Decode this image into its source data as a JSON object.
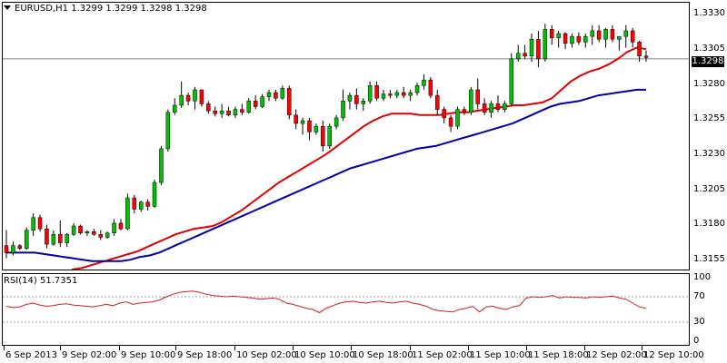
{
  "chart": {
    "symbol": "EURUSD,H1",
    "ohlc": "1.3299 1.3299 1.3298 1.3298",
    "current_price": "1.3298",
    "price_axis": [
      "1.3330",
      "1.3305",
      "1.3280",
      "1.3255",
      "1.3230",
      "1.3205",
      "1.3180",
      "1.3155"
    ],
    "time_axis": [
      "6 Sep 2013",
      "9 Sep 02:00",
      "9 Sep 10:00",
      "9 Sep 18:00",
      "10 Sep 02:00",
      "10 Sep 10:00",
      "10 Sep 18:00",
      "11 Sep 02:00",
      "11 Sep 10:00",
      "11 Sep 18:00",
      "12 Sep 02:00",
      "12 Sep 10:00"
    ]
  },
  "rsi": {
    "label": "RSI(14)",
    "value": "51.7351",
    "axis": [
      "100",
      "70",
      "30",
      "0"
    ]
  },
  "colors": {
    "bull": "#00c000",
    "bear": "#ff0000",
    "ma_fast": "#e00000",
    "ma_slow": "#0000a0",
    "rsi_line": "#d02020",
    "level_line": "#a0a0a0"
  },
  "chart_data": [
    {
      "type": "candlestick",
      "title": "EURUSD,H1",
      "ylim": [
        1.3148,
        1.3338
      ],
      "candles": [
        [
          1.3165,
          1.3176,
          1.3156,
          1.316
        ],
        [
          1.316,
          1.3168,
          1.3158,
          1.3165
        ],
        [
          1.3165,
          1.3166,
          1.3162,
          1.3163
        ],
        [
          1.3163,
          1.3178,
          1.3162,
          1.3176
        ],
        [
          1.3176,
          1.3188,
          1.3172,
          1.3185
        ],
        [
          1.3185,
          1.3187,
          1.3175,
          1.3177
        ],
        [
          1.3177,
          1.318,
          1.3163,
          1.3166
        ],
        [
          1.3166,
          1.3176,
          1.3165,
          1.3173
        ],
        [
          1.3173,
          1.3183,
          1.3164,
          1.3167
        ],
        [
          1.3167,
          1.3174,
          1.3164,
          1.3173
        ],
        [
          1.3173,
          1.3181,
          1.3172,
          1.3179
        ],
        [
          1.3179,
          1.318,
          1.3173,
          1.3174
        ],
        [
          1.3174,
          1.3176,
          1.3172,
          1.3175
        ],
        [
          1.3175,
          1.3177,
          1.3172,
          1.3173
        ],
        [
          1.3173,
          1.3176,
          1.3169,
          1.3171
        ],
        [
          1.3171,
          1.3175,
          1.317,
          1.3174
        ],
        [
          1.3174,
          1.3184,
          1.3172,
          1.3181
        ],
        [
          1.3181,
          1.3184,
          1.3176,
          1.3177
        ],
        [
          1.3177,
          1.3202,
          1.3176,
          1.3199
        ],
        [
          1.3199,
          1.3201,
          1.3188,
          1.3191
        ],
        [
          1.3191,
          1.3197,
          1.3189,
          1.3196
        ],
        [
          1.3196,
          1.3198,
          1.319,
          1.3193
        ],
        [
          1.3193,
          1.3212,
          1.3192,
          1.321
        ],
        [
          1.321,
          1.3236,
          1.3208,
          1.3234
        ],
        [
          1.3234,
          1.3262,
          1.3232,
          1.326
        ],
        [
          1.326,
          1.327,
          1.3258,
          1.3265
        ],
        [
          1.3265,
          1.3282,
          1.3263,
          1.3272
        ],
        [
          1.3272,
          1.3274,
          1.3265,
          1.3268
        ],
        [
          1.3268,
          1.3278,
          1.3262,
          1.3276
        ],
        [
          1.3276,
          1.3276,
          1.3264,
          1.3266
        ],
        [
          1.3266,
          1.3268,
          1.3259,
          1.3261
        ],
        [
          1.3261,
          1.3264,
          1.3257,
          1.3259
        ],
        [
          1.3259,
          1.3266,
          1.3256,
          1.3261
        ],
        [
          1.3261,
          1.3264,
          1.3257,
          1.3258
        ],
        [
          1.3258,
          1.3264,
          1.3256,
          1.3262
        ],
        [
          1.3262,
          1.3266,
          1.3258,
          1.326
        ],
        [
          1.326,
          1.327,
          1.3259,
          1.3268
        ],
        [
          1.3268,
          1.3272,
          1.3262,
          1.3264
        ],
        [
          1.3264,
          1.3273,
          1.3263,
          1.3271
        ],
        [
          1.3271,
          1.3276,
          1.3268,
          1.3274
        ],
        [
          1.3274,
          1.3276,
          1.3268,
          1.327
        ],
        [
          1.327,
          1.3279,
          1.3269,
          1.3277
        ],
        [
          1.3277,
          1.3279,
          1.3255,
          1.3258
        ],
        [
          1.3258,
          1.3262,
          1.3248,
          1.3252
        ],
        [
          1.3252,
          1.3256,
          1.3244,
          1.3254
        ],
        [
          1.3254,
          1.3256,
          1.324,
          1.3246
        ],
        [
          1.3246,
          1.3252,
          1.3244,
          1.325
        ],
        [
          1.325,
          1.3254,
          1.3232,
          1.3236
        ],
        [
          1.3236,
          1.3252,
          1.3234,
          1.325
        ],
        [
          1.325,
          1.3258,
          1.3248,
          1.3256
        ],
        [
          1.3256,
          1.3276,
          1.3254,
          1.3268
        ],
        [
          1.3268,
          1.3274,
          1.3262,
          1.3272
        ],
        [
          1.3272,
          1.3277,
          1.3262,
          1.3266
        ],
        [
          1.3266,
          1.327,
          1.3261,
          1.3268
        ],
        [
          1.3268,
          1.3282,
          1.3266,
          1.3279
        ],
        [
          1.3279,
          1.3282,
          1.3268,
          1.327
        ],
        [
          1.327,
          1.3276,
          1.3268,
          1.3273
        ],
        [
          1.3273,
          1.3276,
          1.327,
          1.3272
        ],
        [
          1.3272,
          1.3276,
          1.327,
          1.3274
        ],
        [
          1.3274,
          1.3278,
          1.327,
          1.3272
        ],
        [
          1.3272,
          1.3276,
          1.3268,
          1.3274
        ],
        [
          1.3274,
          1.3281,
          1.3272,
          1.3279
        ],
        [
          1.3279,
          1.3287,
          1.3276,
          1.3283
        ],
        [
          1.3283,
          1.3285,
          1.327,
          1.3272
        ],
        [
          1.3272,
          1.3276,
          1.3258,
          1.3262
        ],
        [
          1.3262,
          1.3264,
          1.3252,
          1.3256
        ],
        [
          1.3256,
          1.3258,
          1.3246,
          1.325
        ],
        [
          1.325,
          1.3264,
          1.3248,
          1.3262
        ],
        [
          1.3262,
          1.3264,
          1.3258,
          1.326
        ],
        [
          1.326,
          1.3278,
          1.3258,
          1.3276
        ],
        [
          1.3276,
          1.3284,
          1.3262,
          1.3266
        ],
        [
          1.3266,
          1.327,
          1.3258,
          1.326
        ],
        [
          1.326,
          1.3268,
          1.3256,
          1.3266
        ],
        [
          1.3266,
          1.3272,
          1.326,
          1.3262
        ],
        [
          1.3262,
          1.3268,
          1.326,
          1.3266
        ],
        [
          1.3266,
          1.3302,
          1.3264,
          1.3298
        ],
        [
          1.3298,
          1.3308,
          1.3296,
          1.3302
        ],
        [
          1.3302,
          1.3308,
          1.3298,
          1.33
        ],
        [
          1.33,
          1.3316,
          1.3296,
          1.3312
        ],
        [
          1.3312,
          1.3318,
          1.3292,
          1.3298
        ],
        [
          1.3298,
          1.3323,
          1.3296,
          1.3319
        ],
        [
          1.3319,
          1.3322,
          1.3308,
          1.3313
        ],
        [
          1.3313,
          1.3318,
          1.3306,
          1.3316
        ],
        [
          1.3316,
          1.3317,
          1.3305,
          1.3309
        ],
        [
          1.3309,
          1.3316,
          1.3306,
          1.3314
        ],
        [
          1.3314,
          1.3317,
          1.3308,
          1.331
        ],
        [
          1.331,
          1.3316,
          1.3306,
          1.3314
        ],
        [
          1.3314,
          1.3322,
          1.3308,
          1.3318
        ],
        [
          1.3318,
          1.3322,
          1.331,
          1.3312
        ],
        [
          1.3312,
          1.332,
          1.3306,
          1.3319
        ],
        [
          1.3319,
          1.3322,
          1.331,
          1.3312
        ],
        [
          1.3312,
          1.3314,
          1.3304,
          1.3314
        ],
        [
          1.3314,
          1.3322,
          1.3306,
          1.3318
        ],
        [
          1.3318,
          1.332,
          1.3306,
          1.331
        ],
        [
          1.331,
          1.3311,
          1.3296,
          1.33
        ],
        [
          1.33,
          1.3304,
          1.3296,
          1.3299
        ]
      ],
      "series": [
        {
          "values": [
            1.3148,
            1.3149,
            1.3151,
            1.3153,
            1.3155,
            1.3157,
            1.3159,
            1.3161,
            1.3164,
            1.3167,
            1.317,
            1.3173,
            1.3175,
            1.3177,
            1.3178,
            1.3179,
            1.3182,
            1.3186,
            1.319,
            1.3195,
            1.32,
            1.3205,
            1.321,
            1.3214,
            1.3218,
            1.3222,
            1.3226,
            1.323,
            1.3235,
            1.324,
            1.3245,
            1.325,
            1.3254,
            1.3257,
            1.3259,
            1.3259,
            1.3259,
            1.3258,
            1.3258,
            1.3258,
            1.3259,
            1.326,
            1.326,
            1.3261,
            1.3262,
            1.3263,
            1.3264,
            1.3265,
            1.3265,
            1.3266,
            1.3267,
            1.327,
            1.3276,
            1.3282,
            1.3286,
            1.3289,
            1.3291,
            1.3294,
            1.3298,
            1.3303,
            1.3306,
            1.3305
          ]
        },
        {
          "values": [
            1.316,
            1.316,
            1.316,
            1.316,
            1.3159,
            1.3158,
            1.3157,
            1.3156,
            1.3155,
            1.3154,
            1.3154,
            1.3154,
            1.3154,
            1.3155,
            1.3157,
            1.3158,
            1.316,
            1.3163,
            1.3166,
            1.3169,
            1.3172,
            1.3175,
            1.3178,
            1.3181,
            1.3184,
            1.3187,
            1.319,
            1.3193,
            1.3196,
            1.3199,
            1.3202,
            1.3205,
            1.3208,
            1.3211,
            1.3214,
            1.3217,
            1.322,
            1.3222,
            1.3224,
            1.3226,
            1.3228,
            1.323,
            1.3232,
            1.3234,
            1.3235,
            1.3236,
            1.3238,
            1.324,
            1.3242,
            1.3244,
            1.3246,
            1.3248,
            1.325,
            1.3252,
            1.3255,
            1.3258,
            1.3261,
            1.3264,
            1.3266,
            1.3267,
            1.3268,
            1.327,
            1.3272,
            1.3273,
            1.3274,
            1.3275,
            1.3276,
            1.3276
          ]
        }
      ]
    },
    {
      "type": "line",
      "title": "RSI(14) 51.7351",
      "ylim": [
        0,
        100
      ],
      "levels": [
        70,
        30
      ],
      "series": [
        {
          "values": [
            55,
            53,
            54,
            58,
            60,
            57,
            55,
            56,
            58,
            59,
            57,
            56,
            55,
            54,
            56,
            58,
            56,
            60,
            62,
            58,
            60,
            61,
            62,
            65,
            70,
            74,
            77,
            78,
            79,
            77,
            74,
            72,
            71,
            70,
            71,
            70,
            69,
            68,
            66,
            67,
            68,
            66,
            60,
            58,
            55,
            52,
            50,
            45,
            52,
            56,
            60,
            62,
            63,
            61,
            60,
            62,
            63,
            61,
            60,
            62,
            63,
            60,
            58,
            55,
            50,
            48,
            47,
            46,
            50,
            52,
            55,
            46,
            54,
            55,
            52,
            50,
            54,
            56,
            68,
            70,
            69,
            70,
            72,
            68,
            70,
            69,
            69,
            68,
            70,
            69,
            70,
            71,
            68,
            66,
            60,
            54,
            51.7
          ]
        }
      ]
    }
  ]
}
